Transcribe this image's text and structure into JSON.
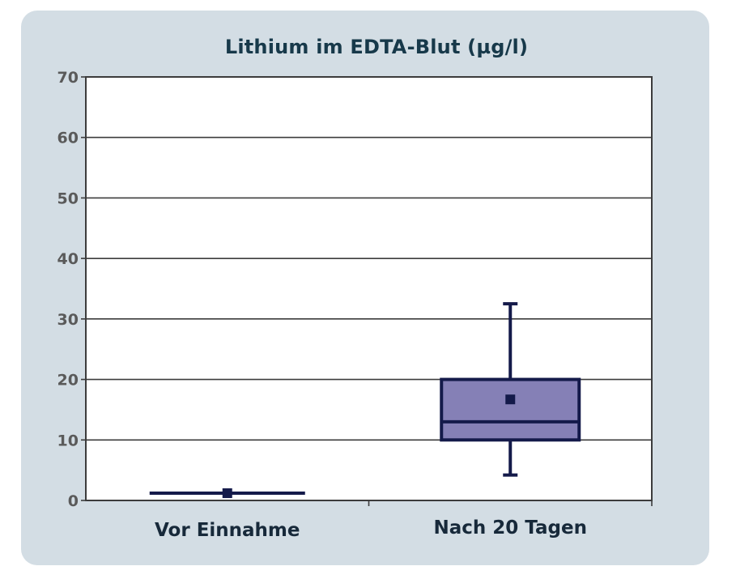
{
  "chart_data": {
    "type": "boxplot",
    "title": "Lithium im EDTA-Blut (µg/l)",
    "xlabel": "",
    "ylabel": "",
    "ylim": [
      0,
      70
    ],
    "yticks": [
      0,
      10,
      20,
      30,
      40,
      50,
      60,
      70
    ],
    "grid": true,
    "categories": [
      "Vor Einnahme",
      "Nach 20 Tagen"
    ],
    "boxes": [
      {
        "category": "Vor Einnahme",
        "min": 1.2,
        "q1": 1.2,
        "median": 1.2,
        "q3": 1.2,
        "max": 1.2,
        "mean": 1.2
      },
      {
        "category": "Nach 20 Tagen",
        "min": 4.2,
        "q1": 10.0,
        "median": 13.0,
        "q3": 20.0,
        "max": 32.5,
        "mean": 16.7
      }
    ],
    "colors": {
      "box_fill": "#8580b6",
      "box_stroke": "#141a4a",
      "grid": "#3c3c3c",
      "plot_bg": "#ffffff"
    }
  }
}
